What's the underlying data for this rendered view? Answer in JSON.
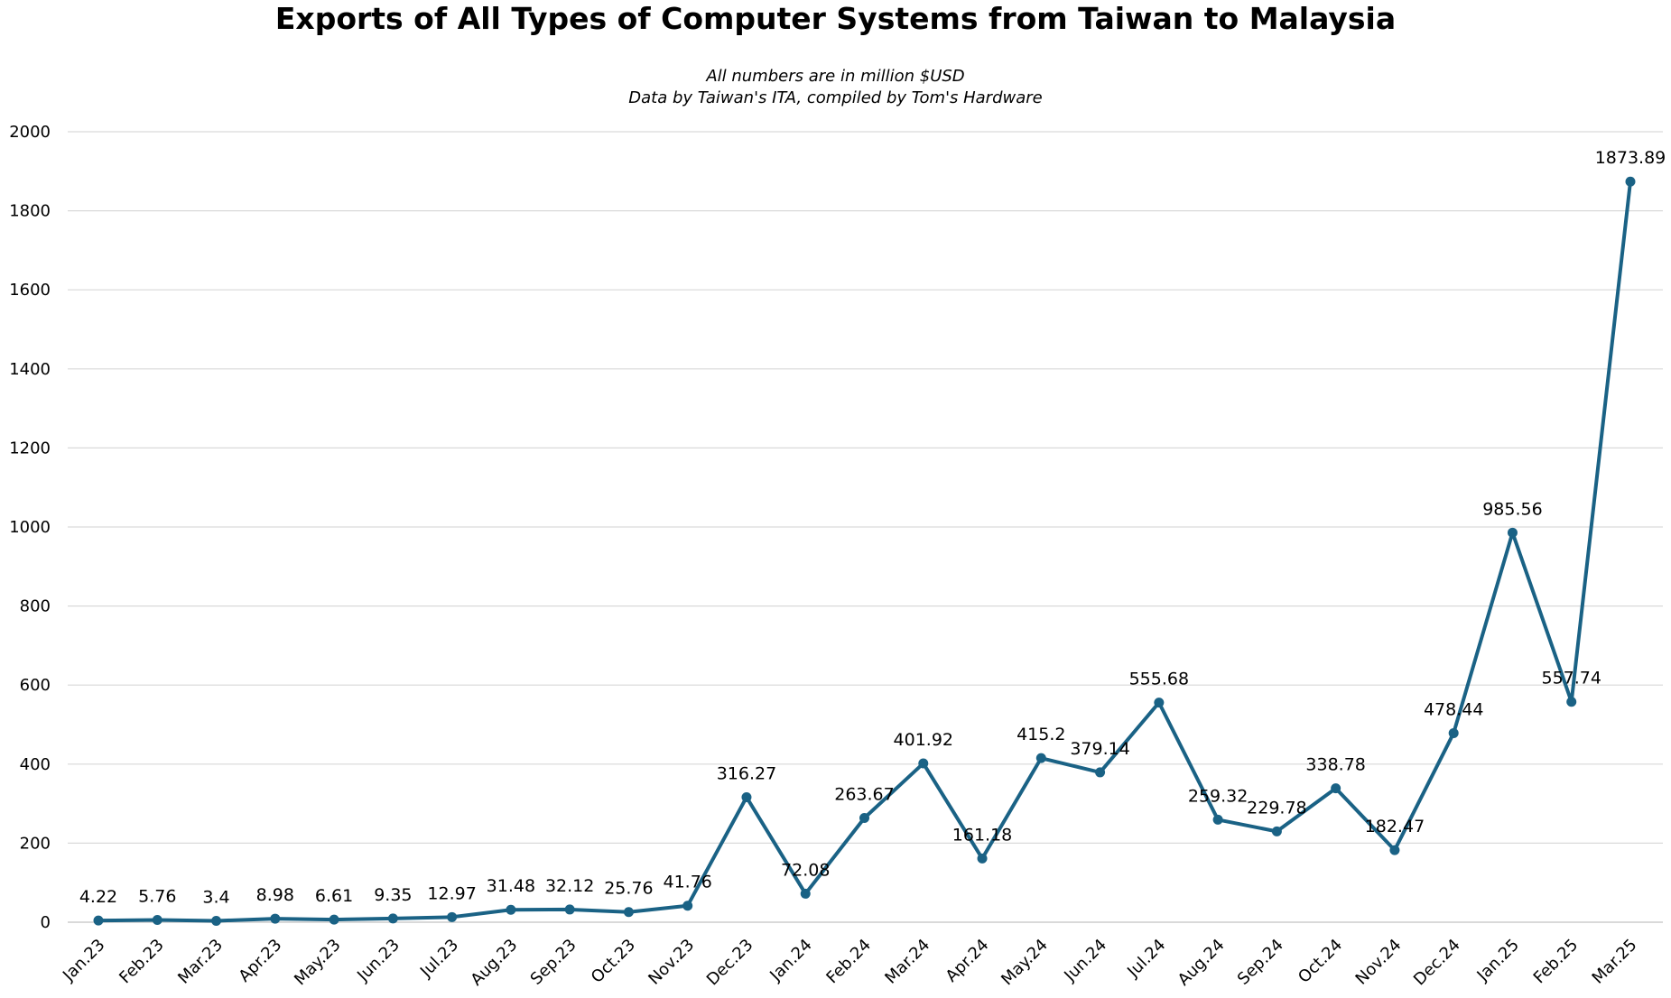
{
  "chart_data": {
    "type": "line",
    "title": "Exports of All Types of Computer Systems from Taiwan to Malaysia",
    "subtitle": [
      "All numbers are in million $USD",
      "Data by Taiwan's ITA, compiled by Tom's Hardware"
    ],
    "xlabel": "",
    "ylabel": "",
    "ylim": [
      0,
      2000
    ],
    "yticks": [
      0,
      200,
      400,
      600,
      800,
      1000,
      1200,
      1400,
      1600,
      1800,
      2000
    ],
    "grid": true,
    "color": "#1a6285",
    "categories": [
      "Jan.23",
      "Feb.23",
      "Mar.23",
      "Apr.23",
      "May.23",
      "Jun.23",
      "Jul.23",
      "Aug.23",
      "Sep.23",
      "Oct.23",
      "Nov.23",
      "Dec.23",
      "Jan.24",
      "Feb.24",
      "Mar.24",
      "Apr.24",
      "May.24",
      "Jun.24",
      "Jul.24",
      "Aug.24",
      "Sep.24",
      "Oct.24",
      "Nov.24",
      "Dec.24",
      "Jan.25",
      "Feb.25",
      "Mar.25"
    ],
    "values": [
      4.22,
      5.76,
      3.4,
      8.98,
      6.61,
      9.35,
      12.97,
      31.48,
      32.12,
      25.76,
      41.76,
      316.27,
      72.08,
      263.67,
      401.92,
      161.18,
      415.2,
      379.14,
      555.68,
      259.32,
      229.78,
      338.78,
      182.47,
      478.44,
      985.56,
      557.74,
      1873.89
    ]
  }
}
